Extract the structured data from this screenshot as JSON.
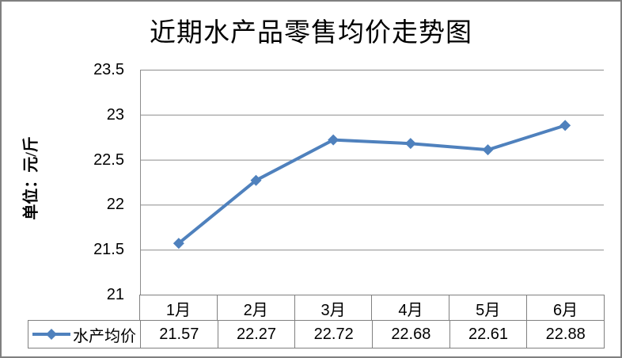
{
  "window": {
    "background": "#ffffff",
    "frame_color": "#808080"
  },
  "chart_data": {
    "type": "line",
    "title": "近期水产品零售均价走势图",
    "ylabel": "单位：元/斤",
    "xlabel": "",
    "categories": [
      "1月",
      "2月",
      "3月",
      "4月",
      "5月",
      "6月"
    ],
    "series": [
      {
        "name": "水产均价",
        "values": [
          21.57,
          22.27,
          22.72,
          22.68,
          22.61,
          22.88
        ],
        "values_display": [
          "21.57",
          "22.27",
          "22.72",
          "22.68",
          "22.61",
          "22.88"
        ],
        "color": "#4F81BD",
        "marker": "diamond"
      }
    ],
    "ylim": [
      21,
      23.5
    ],
    "ytick_step": 0.5,
    "yticks": [
      "23.5",
      "23",
      "22.5",
      "22",
      "21.5",
      "21"
    ],
    "grid": "horizontal-only",
    "gridline_color": "#8C8C8C",
    "axis_line_color": "#8C8C8C",
    "table_border_color": "#808080",
    "legend_position": "data-table-left",
    "data_table_shown": true
  }
}
